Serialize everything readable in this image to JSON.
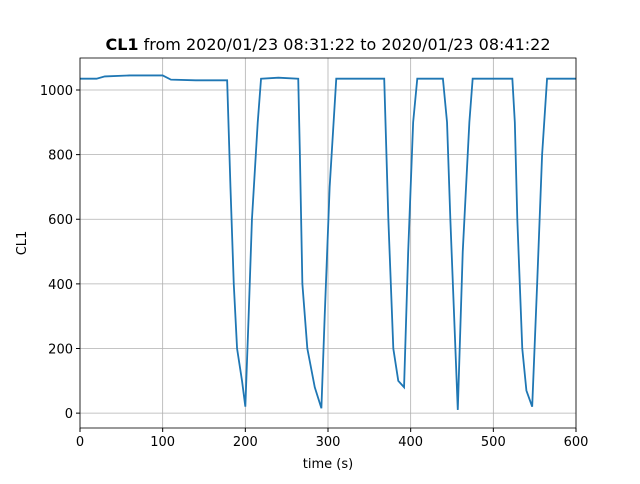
{
  "chart_data": {
    "type": "line",
    "title": {
      "bold": "CL1",
      "text": "from 2020/01/23 08:31:22 to 2020/01/23 08:41:22"
    },
    "xlabel": "time (s)",
    "ylabel": "CL1",
    "xlim": [
      0,
      600
    ],
    "ylim": [
      -46,
      1099
    ],
    "xticks": [
      0,
      100,
      200,
      300,
      400,
      500,
      600
    ],
    "yticks": [
      0,
      200,
      400,
      600,
      800,
      1000
    ],
    "grid": true,
    "x": [
      0,
      20,
      30,
      60,
      100,
      110,
      140,
      178,
      182,
      186,
      190,
      196,
      200,
      204,
      208,
      215,
      219,
      240,
      264,
      266,
      269,
      275,
      284,
      292,
      296,
      302,
      310,
      340,
      368,
      373,
      379,
      385,
      392,
      397,
      403,
      408,
      439,
      444,
      448,
      457,
      463,
      471,
      475,
      500,
      523,
      526,
      529,
      535,
      540,
      547,
      553,
      559,
      565,
      590,
      600
    ],
    "series": [
      {
        "name": "CL1",
        "color": "#1f77b4",
        "values": [
          1035,
          1035,
          1042,
          1045,
          1045,
          1032,
          1030,
          1030,
          700,
          400,
          200,
          100,
          20,
          300,
          600,
          900,
          1035,
          1038,
          1035,
          800,
          400,
          200,
          80,
          15,
          300,
          700,
          1035,
          1035,
          1035,
          600,
          200,
          100,
          80,
          500,
          900,
          1035,
          1035,
          900,
          600,
          10,
          500,
          900,
          1035,
          1035,
          1035,
          900,
          600,
          200,
          70,
          20,
          400,
          800,
          1035,
          1035,
          1035
        ]
      }
    ]
  }
}
